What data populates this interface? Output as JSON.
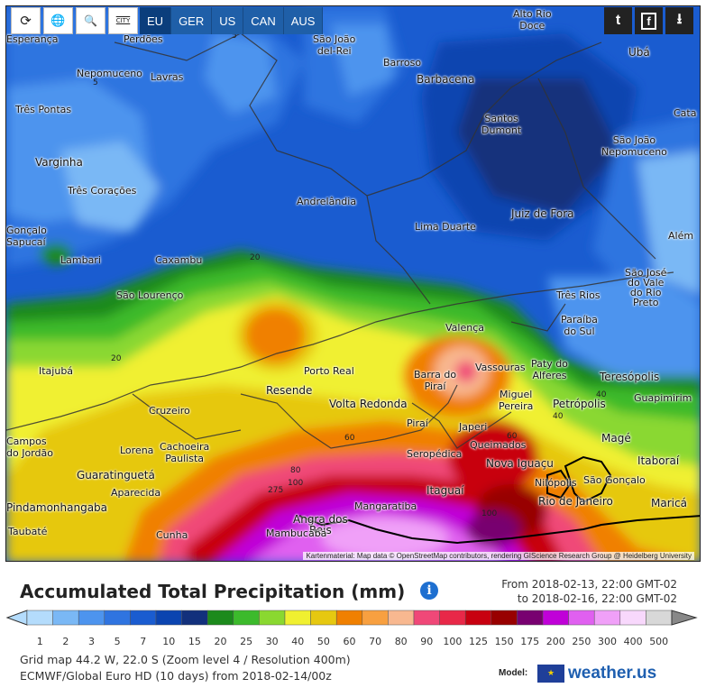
{
  "toolbar": {
    "buttons": [
      {
        "icon": "refresh-icon",
        "glyph": "⟳"
      },
      {
        "icon": "globe-icon",
        "glyph": "🌐"
      },
      {
        "icon": "zoom-icon",
        "glyph": "🔍"
      },
      {
        "icon": "city-icon",
        "label": "CITY"
      }
    ]
  },
  "regions": [
    "EU",
    "GER",
    "US",
    "CAN",
    "AUS"
  ],
  "active_region": "EU",
  "social": {
    "twitter": "t",
    "facebook": "f",
    "download": "⭳"
  },
  "map": {
    "cities": [
      {
        "name": "Alto Rio\nDoce"
      },
      {
        "name": "Esperança"
      },
      {
        "name": "Perdões"
      },
      {
        "name": "São João\ndel-Rei"
      },
      {
        "name": "Barroso"
      },
      {
        "name": "Barbacena"
      },
      {
        "name": "Ubá"
      },
      {
        "name": "Nepomuceno"
      },
      {
        "name": "Lavras"
      },
      {
        "name": "Três Pontas"
      },
      {
        "name": "Santos\nDumont"
      },
      {
        "name": "Cata"
      },
      {
        "name": "São João\nNepomuceno"
      },
      {
        "name": "Varginha"
      },
      {
        "name": "Três Corações"
      },
      {
        "name": "Andrelândia"
      },
      {
        "name": "Juiz de Fora"
      },
      {
        "name": "Lima Duarte"
      },
      {
        "name": "Gonçalo\nSapucaí"
      },
      {
        "name": "Além"
      },
      {
        "name": "Lambari"
      },
      {
        "name": "Caxambu"
      },
      {
        "name": "São José\ndo Vale\ndo Rio\nPreto"
      },
      {
        "name": "São Lourenço"
      },
      {
        "name": "Três Rios"
      },
      {
        "name": "Paraíba\ndo Sul"
      },
      {
        "name": "Valença"
      },
      {
        "name": "Itajubá"
      },
      {
        "name": "Porto Real"
      },
      {
        "name": "Barra do\nPiraí"
      },
      {
        "name": "Vassouras"
      },
      {
        "name": "Paty do\nAlferes"
      },
      {
        "name": "Teresópolis"
      },
      {
        "name": "Resende"
      },
      {
        "name": "Miguel\nPereira"
      },
      {
        "name": "Petrópolis"
      },
      {
        "name": "Guapimirim"
      },
      {
        "name": "Volta Redonda"
      },
      {
        "name": "Cruzeiro"
      },
      {
        "name": "Piraí"
      },
      {
        "name": "Japeri"
      },
      {
        "name": "Magé"
      },
      {
        "name": "Campos\ndo Jordão"
      },
      {
        "name": "Lorena"
      },
      {
        "name": "Cachoeira\nPaulista"
      },
      {
        "name": "Queimados"
      },
      {
        "name": "Seropédica"
      },
      {
        "name": "Nova Iguaçu"
      },
      {
        "name": "Itaboraí"
      },
      {
        "name": "Guaratinguetá"
      },
      {
        "name": "São Gonçalo"
      },
      {
        "name": "Nilópolis"
      },
      {
        "name": "Aparecida"
      },
      {
        "name": "Itaguaí"
      },
      {
        "name": "Rio de Janeiro"
      },
      {
        "name": "Maricá"
      },
      {
        "name": "Pindamonhangaba"
      },
      {
        "name": "Mangaratiba"
      },
      {
        "name": "Angra dos\nReis"
      },
      {
        "name": "Taubaté"
      },
      {
        "name": "Cunha"
      },
      {
        "name": "Mambucaba"
      }
    ],
    "isolines": [
      "5",
      "5",
      "20",
      "20",
      "40",
      "40",
      "60",
      "60",
      "80",
      "100",
      "100",
      "275"
    ],
    "attribution": "Kartenmaterial: Map data © OpenStreetMap contributors, rendering GIScience Research Group @ Heidelberg University"
  },
  "header": {
    "title": "Accumulated Total Precipitation (mm)",
    "info_icon": "i",
    "from": "From 2018-02-13, 22:00 GMT-02",
    "to": "to 2018-02-16, 22:00 GMT-02"
  },
  "legend": {
    "values": [
      "1",
      "2",
      "3",
      "5",
      "7",
      "10",
      "15",
      "20",
      "25",
      "30",
      "40",
      "50",
      "60",
      "70",
      "80",
      "90",
      "100",
      "125",
      "150",
      "175",
      "200",
      "250",
      "300",
      "400",
      "500"
    ],
    "colors": [
      "#b4dcfc",
      "#7ab8f5",
      "#4d94ee",
      "#2f74e0",
      "#1a5cd0",
      "#0b44b0",
      "#12307c",
      "#1c8a1c",
      "#3cba2c",
      "#8ad830",
      "#f0f030",
      "#e6c810",
      "#f08000",
      "#f8a040",
      "#f8b890",
      "#f04878",
      "#e82848",
      "#c80010",
      "#980000",
      "#780070",
      "#c000d8",
      "#e060f0",
      "#f0a0f8",
      "#f8d8fc",
      "#d8d8d8"
    ]
  },
  "meta": {
    "grid": "Grid map 44.2 W, 22.0 S (Zoom level 4 / Resolution 400m)",
    "model_run": "ECMWF/Global Euro HD (10 days) from 2018-02-14/00z"
  },
  "model": {
    "label": "Model:",
    "brand": "weather.us"
  }
}
